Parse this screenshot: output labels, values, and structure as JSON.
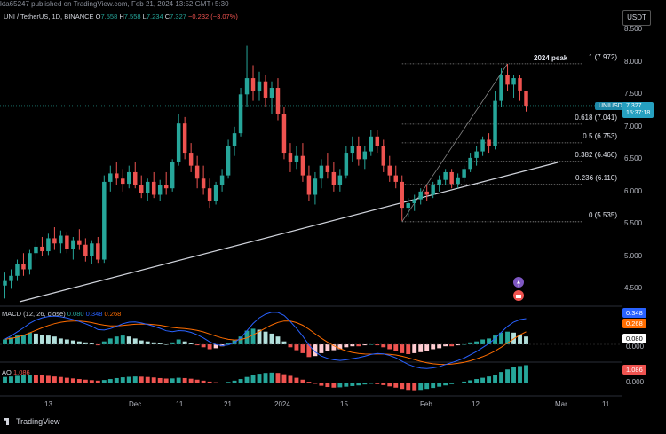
{
  "header": {
    "publisher": "kta65247 published on TradingView.com, Feb 21, 2024 13:52 GMT+5:30",
    "symbol_line": "UNI / TetherUS, 1D, BINANCE",
    "o_label": "O",
    "o": "7.558",
    "h_label": "H",
    "h": "7.558",
    "l_label": "L",
    "l": "7.234",
    "c_label": "C",
    "c": "7.327",
    "change": "−0.232 (−3.07%)",
    "currency": "USDT"
  },
  "price_axis": [
    "8.500",
    "8.000",
    "7.500",
    "7.000",
    "6.500",
    "6.000",
    "5.500",
    "5.000",
    "4.500"
  ],
  "time_axis": [
    "13",
    "Dec",
    "11",
    "21",
    "2024",
    "15",
    "Feb",
    "12",
    "Mar",
    "11"
  ],
  "fib": {
    "title": "2024 peak",
    "levels": [
      {
        "label": "1 (7.972)",
        "price": 7.972
      },
      {
        "label": "0.618 (7.041)",
        "price": 7.041
      },
      {
        "label": "0.5 (6.753)",
        "price": 6.753
      },
      {
        "label": "0.382 (6.466)",
        "price": 6.466
      },
      {
        "label": "0.236 (6.110)",
        "price": 6.11
      },
      {
        "label": "0 (5.535)",
        "price": 5.535
      }
    ]
  },
  "last_price": {
    "symbol": "UNIUSDT",
    "price": "7.327",
    "countdown": "15:37:18"
  },
  "macd": {
    "label": "MACD (12, 26, close)",
    "hist": "0.080",
    "macd": "0.348",
    "signal": "0.268",
    "axis_zero": "0.000",
    "colors": {
      "macd": "#2962ff",
      "signal": "#ff6d00",
      "hist_pos": "#26a69a",
      "hist_neg": "#ef5350",
      "hist_pos_light": "#b2dfdb",
      "hist_neg_light": "#ffcdd2"
    }
  },
  "ao": {
    "label": "AO",
    "value": "1.086",
    "axis_zero": "0.000"
  },
  "branding": {
    "name": "TradingView"
  },
  "colors": {
    "up": "#26a69a",
    "down": "#ef5350",
    "bg": "#000000",
    "trendline": "#d1d4dc"
  },
  "chart_data": {
    "type": "candlestick",
    "description_series": "UNI/USDT daily candles (approximate)",
    "ohlc": [
      [
        4.55,
        4.75,
        4.35,
        4.62
      ],
      [
        4.62,
        4.8,
        4.5,
        4.7
      ],
      [
        4.7,
        4.95,
        4.62,
        4.88
      ],
      [
        4.88,
        5.05,
        4.7,
        4.8
      ],
      [
        4.8,
        5.1,
        4.72,
        5.05
      ],
      [
        5.05,
        5.25,
        4.95,
        5.15
      ],
      [
        5.15,
        5.3,
        5.0,
        5.08
      ],
      [
        5.08,
        5.35,
        5.02,
        5.28
      ],
      [
        5.28,
        5.45,
        5.1,
        5.2
      ],
      [
        5.2,
        5.4,
        5.05,
        5.32
      ],
      [
        5.32,
        5.38,
        5.05,
        5.12
      ],
      [
        5.12,
        5.3,
        4.95,
        5.25
      ],
      [
        5.25,
        5.42,
        5.1,
        5.18
      ],
      [
        5.18,
        5.28,
        4.92,
        5.0
      ],
      [
        5.0,
        5.25,
        4.88,
        5.2
      ],
      [
        5.2,
        5.3,
        4.9,
        4.95
      ],
      [
        4.95,
        6.25,
        4.9,
        6.15
      ],
      [
        6.15,
        6.4,
        6.0,
        6.28
      ],
      [
        6.28,
        6.45,
        6.1,
        6.2
      ],
      [
        6.2,
        6.35,
        6.0,
        6.12
      ],
      [
        6.12,
        6.4,
        6.05,
        6.3
      ],
      [
        6.3,
        6.45,
        6.05,
        6.1
      ],
      [
        6.1,
        6.25,
        5.9,
        5.98
      ],
      [
        5.98,
        6.2,
        5.85,
        6.15
      ],
      [
        6.15,
        6.3,
        5.9,
        5.95
      ],
      [
        5.95,
        6.18,
        5.85,
        6.1
      ],
      [
        6.1,
        6.3,
        5.95,
        6.05
      ],
      [
        6.05,
        6.5,
        6.0,
        6.45
      ],
      [
        6.45,
        7.2,
        6.4,
        7.05
      ],
      [
        7.05,
        7.15,
        6.5,
        6.6
      ],
      [
        6.6,
        6.75,
        6.3,
        6.4
      ],
      [
        6.4,
        6.55,
        6.05,
        6.2
      ],
      [
        6.2,
        6.4,
        5.95,
        6.05
      ],
      [
        6.05,
        6.2,
        5.75,
        5.85
      ],
      [
        5.85,
        6.15,
        5.8,
        6.1
      ],
      [
        6.1,
        6.35,
        6.0,
        6.25
      ],
      [
        6.25,
        6.8,
        6.2,
        6.7
      ],
      [
        6.7,
        7.0,
        6.55,
        6.9
      ],
      [
        6.9,
        7.6,
        6.85,
        7.5
      ],
      [
        7.5,
        8.25,
        7.3,
        7.75
      ],
      [
        7.75,
        7.95,
        7.4,
        7.55
      ],
      [
        7.55,
        7.85,
        7.4,
        7.7
      ],
      [
        7.7,
        7.8,
        7.3,
        7.45
      ],
      [
        7.45,
        7.7,
        7.2,
        7.6
      ],
      [
        7.6,
        7.75,
        7.1,
        7.2
      ],
      [
        7.2,
        7.3,
        6.5,
        6.6
      ],
      [
        6.6,
        6.75,
        6.3,
        6.45
      ],
      [
        6.45,
        6.7,
        6.35,
        6.55
      ],
      [
        6.55,
        6.75,
        6.15,
        6.25
      ],
      [
        6.25,
        6.4,
        5.85,
        5.95
      ],
      [
        5.95,
        6.3,
        5.8,
        6.2
      ],
      [
        6.2,
        6.5,
        6.05,
        6.4
      ],
      [
        6.4,
        6.6,
        6.2,
        6.3
      ],
      [
        6.3,
        6.45,
        6.0,
        6.1
      ],
      [
        6.1,
        6.35,
        6.0,
        6.25
      ],
      [
        6.25,
        6.7,
        6.2,
        6.6
      ],
      [
        6.6,
        6.85,
        6.45,
        6.7
      ],
      [
        6.7,
        6.85,
        6.4,
        6.5
      ],
      [
        6.5,
        6.7,
        6.35,
        6.62
      ],
      [
        6.62,
        6.95,
        6.55,
        6.85
      ],
      [
        6.85,
        6.95,
        6.6,
        6.7
      ],
      [
        6.7,
        6.8,
        6.3,
        6.4
      ],
      [
        6.4,
        6.55,
        6.15,
        6.25
      ],
      [
        6.25,
        6.4,
        6.05,
        6.15
      ],
      [
        6.15,
        6.25,
        5.55,
        5.75
      ],
      [
        5.75,
        5.9,
        5.6,
        5.82
      ],
      [
        5.82,
        5.95,
        5.7,
        5.88
      ],
      [
        5.88,
        6.05,
        5.8,
        6.0
      ],
      [
        6.0,
        6.1,
        5.85,
        5.95
      ],
      [
        5.95,
        6.15,
        5.9,
        6.1
      ],
      [
        6.1,
        6.25,
        6.0,
        6.18
      ],
      [
        6.18,
        6.35,
        6.1,
        6.3
      ],
      [
        6.3,
        6.35,
        6.05,
        6.12
      ],
      [
        6.12,
        6.28,
        6.05,
        6.22
      ],
      [
        6.22,
        6.4,
        6.15,
        6.35
      ],
      [
        6.35,
        6.6,
        6.3,
        6.52
      ],
      [
        6.52,
        6.7,
        6.4,
        6.62
      ],
      [
        6.62,
        6.85,
        6.55,
        6.8
      ],
      [
        6.8,
        6.9,
        6.6,
        6.7
      ],
      [
        6.7,
        7.55,
        6.65,
        7.4
      ],
      [
        7.4,
        7.9,
        7.3,
        7.8
      ],
      [
        7.8,
        7.97,
        7.55,
        7.65
      ],
      [
        7.65,
        7.8,
        7.45,
        7.75
      ],
      [
        7.75,
        7.8,
        7.4,
        7.56
      ],
      [
        7.558,
        7.558,
        7.234,
        7.327
      ]
    ],
    "macd_hist": [
      0.05,
      0.07,
      0.09,
      0.1,
      0.12,
      0.11,
      0.1,
      0.09,
      0.08,
      0.06,
      0.05,
      0.04,
      0.03,
      0.02,
      0.01,
      -0.01,
      0.03,
      0.06,
      0.08,
      0.09,
      0.08,
      0.06,
      0.04,
      0.03,
      0.02,
      0.01,
      0.0,
      0.02,
      0.05,
      0.03,
      0.01,
      -0.01,
      -0.03,
      -0.05,
      -0.04,
      -0.02,
      0.01,
      0.04,
      0.08,
      0.14,
      0.16,
      0.15,
      0.13,
      0.11,
      0.08,
      0.03,
      -0.03,
      -0.06,
      -0.09,
      -0.13,
      -0.12,
      -0.09,
      -0.07,
      -0.06,
      -0.05,
      -0.03,
      -0.02,
      -0.02,
      -0.01,
      0.0,
      -0.01,
      -0.03,
      -0.05,
      -0.07,
      -0.09,
      -0.1,
      -0.09,
      -0.08,
      -0.07,
      -0.05,
      -0.04,
      -0.02,
      -0.02,
      -0.01,
      0.0,
      0.02,
      0.03,
      0.05,
      0.06,
      0.09,
      0.12,
      0.13,
      0.12,
      0.1,
      0.08
    ],
    "ao": [
      0.35,
      0.38,
      0.42,
      0.46,
      0.5,
      0.48,
      0.45,
      0.42,
      0.38,
      0.35,
      0.3,
      0.26,
      0.22,
      0.18,
      0.15,
      0.12,
      0.16,
      0.22,
      0.28,
      0.33,
      0.36,
      0.38,
      0.37,
      0.35,
      0.32,
      0.28,
      0.25,
      0.26,
      0.3,
      0.28,
      0.24,
      0.18,
      0.12,
      0.06,
      0.02,
      -0.02,
      0.04,
      0.12,
      0.22,
      0.35,
      0.48,
      0.55,
      0.6,
      0.62,
      0.6,
      0.52,
      0.42,
      0.3,
      0.18,
      0.05,
      -0.08,
      -0.2,
      -0.28,
      -0.32,
      -0.3,
      -0.26,
      -0.22,
      -0.18,
      -0.12,
      -0.08,
      -0.1,
      -0.16,
      -0.24,
      -0.32,
      -0.4,
      -0.46,
      -0.48,
      -0.46,
      -0.4,
      -0.34,
      -0.26,
      -0.18,
      -0.1,
      -0.02,
      0.06,
      0.14,
      0.22,
      0.3,
      0.38,
      0.5,
      0.66,
      0.82,
      0.95,
      1.03,
      1.086
    ],
    "ylim": [
      4.3,
      8.6
    ]
  }
}
